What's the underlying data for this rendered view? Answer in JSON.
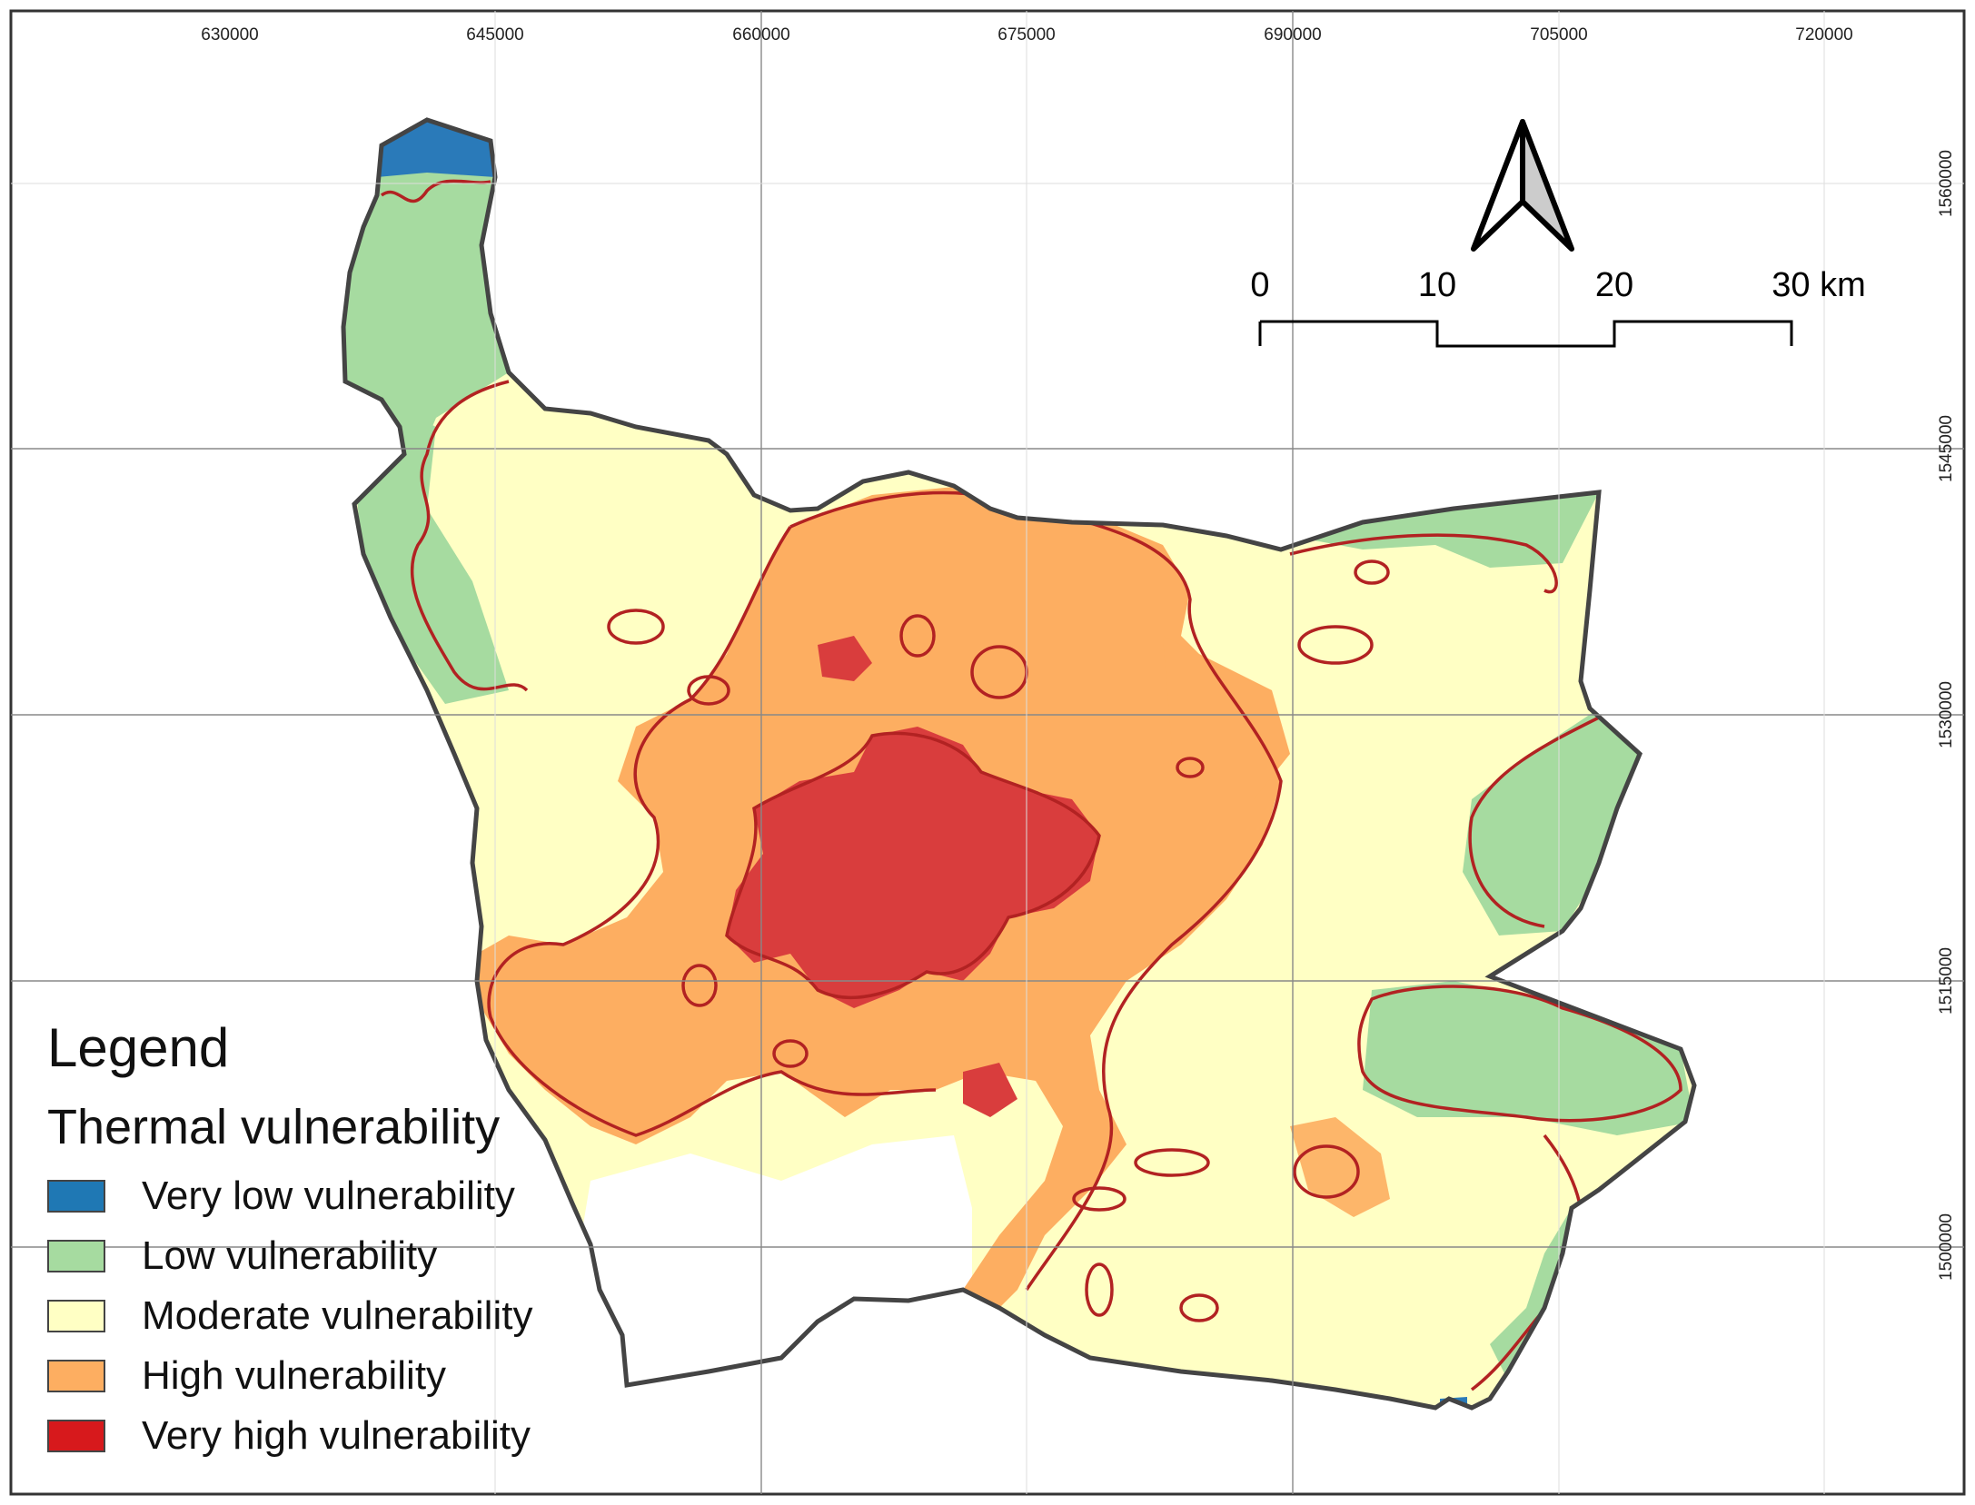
{
  "map": {
    "x_ticks": [
      "630000",
      "645000",
      "660000",
      "675000",
      "690000",
      "705000",
      "720000"
    ],
    "y_ticks": [
      "1560000",
      "1545000",
      "1530000",
      "1515000",
      "1500000"
    ]
  },
  "scale_bar": {
    "labels": [
      "0",
      "10",
      "20",
      "30 km"
    ]
  },
  "north_arrow": {
    "icon": "north-arrow-icon"
  },
  "legend": {
    "title": "Legend",
    "subtitle": "Thermal vulnerability",
    "items": [
      {
        "label": "Very low vulnerability",
        "color": "#1f78b4"
      },
      {
        "label": "Low vulnerability",
        "color": "#a6dba0"
      },
      {
        "label": "Moderate vulnerability",
        "color": "#ffffc4"
      },
      {
        "label": "High vulnerability",
        "color": "#fdae61"
      },
      {
        "label": "Very high vulnerability",
        "color": "#d7191c"
      }
    ]
  },
  "colors": {
    "boundary": "#444444",
    "contour": "#b22222",
    "grid": "#888888"
  }
}
